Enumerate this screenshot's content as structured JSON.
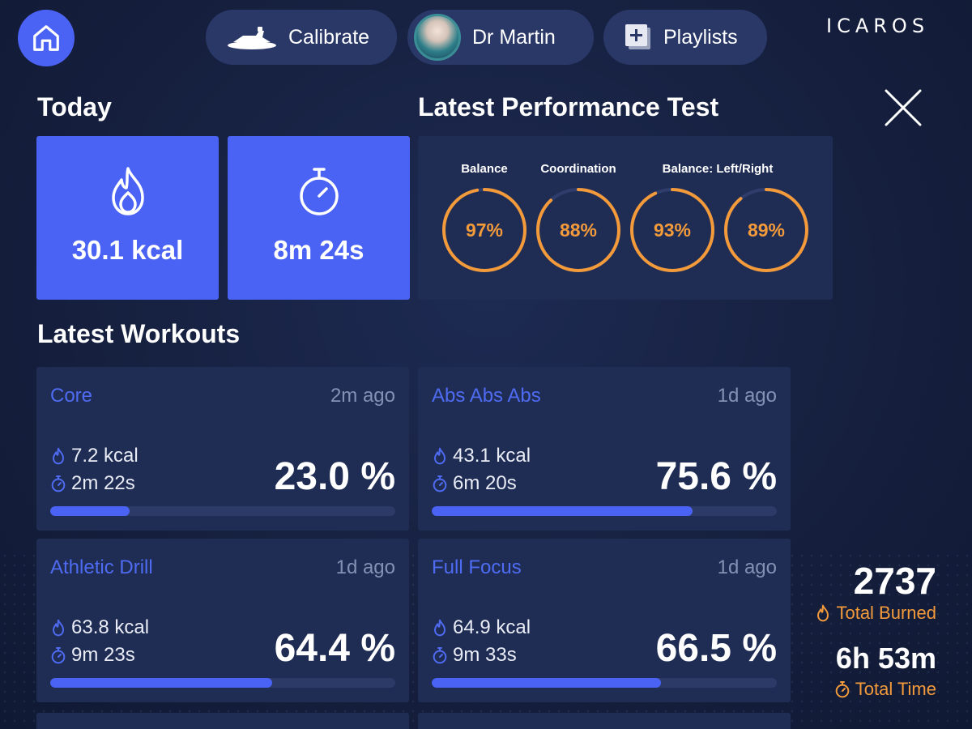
{
  "topbar": {
    "calibrate_label": "Calibrate",
    "profile_name": "Dr Martin",
    "playlists_label": "Playlists",
    "logo_text": "ICAROS",
    "home_icon": "home-icon",
    "close_icon": "close-icon"
  },
  "today": {
    "heading": "Today",
    "calories": "30.1 kcal",
    "duration": "8m 24s"
  },
  "performance": {
    "heading": "Latest Performance Test",
    "labels": {
      "balance": "Balance",
      "coordination": "Coordination",
      "balance_lr": "Balance: Left/Right"
    },
    "rings": [
      {
        "value": "97%",
        "fraction": 0.97
      },
      {
        "value": "88%",
        "fraction": 0.88
      },
      {
        "value": "93%",
        "fraction": 0.93
      },
      {
        "value": "89%",
        "fraction": 0.89
      }
    ]
  },
  "workouts": {
    "heading": "Latest Workouts",
    "items": [
      {
        "name": "Core",
        "ago": "2m ago",
        "kcal": "7.2 kcal",
        "time": "2m 22s",
        "percent": "23.0 %",
        "progress": 0.23
      },
      {
        "name": "Abs Abs Abs",
        "ago": "1d ago",
        "kcal": "43.1 kcal",
        "time": "6m 20s",
        "percent": "75.6 %",
        "progress": 0.756
      },
      {
        "name": "Athletic Drill",
        "ago": "1d ago",
        "kcal": "63.8 kcal",
        "time": "9m 23s",
        "percent": "64.4 %",
        "progress": 0.644
      },
      {
        "name": "Full Focus",
        "ago": "1d ago",
        "kcal": "64.9 kcal",
        "time": "9m 33s",
        "percent": "66.5 %",
        "progress": 0.665
      }
    ]
  },
  "totals": {
    "burned_value": "2737",
    "burned_label": "Total Burned",
    "time_value": "6h 53m",
    "time_label": "Total Time"
  },
  "colors": {
    "accent": "#4a63f5",
    "orange": "#f39a3b",
    "card": "#1f2d55",
    "background": "#16203f"
  }
}
